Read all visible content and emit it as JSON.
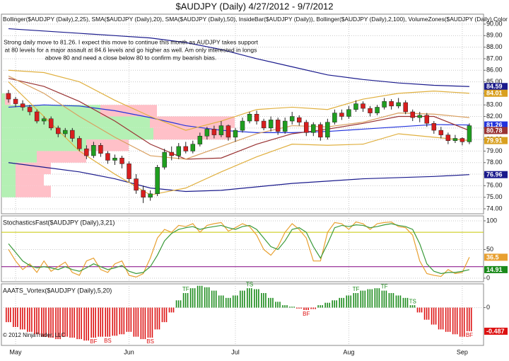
{
  "title": "$AUDJPY (Daily)  4/27/2012 - 9/7/2012",
  "copyright": "© 2012 NinjaTrader, LLC",
  "xlim": [
    -1,
    67
  ],
  "xticks": [
    {
      "value": 1,
      "label": "May"
    },
    {
      "value": 17,
      "label": "Jun"
    },
    {
      "value": 32,
      "label": "Jul"
    },
    {
      "value": 48,
      "label": "Aug"
    },
    {
      "value": 64,
      "label": "Sep"
    }
  ],
  "chart_data": [
    {
      "type": "candlestick",
      "indicators": "Bollinger($AUDJPY (Daily),2,25), SMA($AUDJPY (Daily),20), SMA($AUDJPY (Daily),50), InsideBar($AUDJPY (Daily)), Bollinger($AUDJPY (Daily),2,100), VolumeZones($AUDJPY (Daily),Color [Red],Co",
      "annotation": [
        "Strong daily move to 81.26. I expect this move to continue this month as AUDJPY takes support",
        "at 80 levels for a major assault at 84.6 levels and go higher as well. Am only interested in longs",
        "above 80 and need a close below 80 to confirm my bearish bias."
      ],
      "ylim": [
        73.57,
        90.86
      ],
      "yticks": [
        {
          "value": 74,
          "label": "74.00"
        },
        {
          "value": 75,
          "label": "75.00"
        },
        {
          "value": 76,
          "label": "76.00"
        },
        {
          "value": 77,
          "label": "77.00"
        },
        {
          "value": 78,
          "label": "78.00"
        },
        {
          "value": 79,
          "label": "79.00"
        },
        {
          "value": 80,
          "label": "80.00"
        },
        {
          "value": 81,
          "label": "81.00"
        },
        {
          "value": 82,
          "label": "82.00"
        },
        {
          "value": 83,
          "label": "83.00"
        },
        {
          "value": 84,
          "label": "84.00"
        },
        {
          "value": 85,
          "label": "85.00"
        },
        {
          "value": 86,
          "label": "86.00"
        },
        {
          "value": 87,
          "label": "87.00"
        },
        {
          "value": 88,
          "label": "88.00"
        },
        {
          "value": 89,
          "label": "89.00"
        },
        {
          "value": 90,
          "label": "90.00"
        }
      ],
      "grid": true,
      "up_color": "#1f9e1f",
      "down_color": "#d81e1e",
      "open": [
        84.0,
        83.5,
        83.1,
        82.8,
        82.4,
        81.6,
        81.8,
        81.0,
        80.5,
        80.8,
        80.1,
        79.2,
        78.6,
        79.5,
        78.8,
        78.2,
        78.4,
        77.9,
        76.6,
        75.6,
        75.0,
        75.3,
        77.6,
        78.9,
        78.6,
        79.4,
        79.0,
        79.6,
        80.3,
        80.9,
        80.4,
        81.2,
        80.2,
        80.8,
        81.6,
        82.2,
        81.6,
        81.0,
        81.7,
        80.7,
        81.6,
        81.9,
        81.5,
        80.6,
        81.3,
        80.2,
        81.5,
        82.3,
        82.0,
        82.6,
        83.1,
        82.7,
        82.3,
        82.8,
        83.3,
        82.9,
        83.2,
        82.4,
        81.9,
        82.1,
        81.4,
        80.8,
        80.4,
        79.9,
        80.1,
        79.8
      ],
      "high": [
        84.3,
        83.7,
        83.4,
        83.0,
        82.6,
        82.0,
        82.0,
        81.2,
        81.0,
        81.0,
        80.3,
        79.5,
        79.8,
        79.7,
        79.0,
        78.7,
        78.6,
        78.1,
        77.0,
        76.0,
        75.6,
        77.8,
        79.2,
        79.4,
        79.7,
        79.8,
        79.9,
        80.6,
        81.1,
        81.2,
        81.6,
        81.3,
        81.0,
        81.9,
        82.4,
        82.5,
        81.8,
        82.0,
        81.9,
        81.9,
        82.4,
        82.1,
        81.7,
        81.5,
        81.5,
        81.8,
        82.6,
        82.6,
        82.9,
        83.4,
        83.3,
        82.9,
        83.0,
        83.6,
        83.5,
        83.6,
        83.4,
        82.6,
        82.4,
        82.3,
        81.6,
        81.1,
        80.6,
        80.4,
        80.2,
        81.4
      ],
      "low": [
        83.2,
        82.8,
        82.5,
        82.1,
        81.4,
        81.3,
        80.8,
        80.2,
        80.2,
        79.8,
        79.0,
        78.3,
        78.4,
        78.5,
        77.9,
        77.8,
        77.5,
        76.3,
        75.3,
        74.5,
        74.7,
        75.1,
        77.4,
        78.2,
        78.3,
        78.8,
        78.8,
        79.4,
        80.0,
        80.1,
        80.2,
        79.9,
        79.8,
        80.6,
        81.4,
        81.3,
        80.8,
        80.7,
        80.4,
        80.5,
        81.3,
        81.2,
        80.3,
        80.3,
        79.9,
        80.0,
        81.3,
        81.7,
        81.8,
        82.4,
        82.4,
        82.0,
        82.1,
        82.6,
        82.6,
        82.7,
        82.2,
        81.6,
        81.5,
        81.1,
        80.5,
        80.1,
        79.6,
        79.7,
        79.5,
        79.6
      ],
      "close": [
        83.5,
        83.1,
        82.8,
        82.4,
        81.6,
        81.8,
        81.0,
        80.5,
        80.8,
        80.1,
        79.2,
        78.6,
        79.5,
        78.8,
        78.2,
        78.4,
        77.9,
        76.6,
        75.6,
        75.0,
        75.3,
        77.6,
        78.9,
        78.6,
        79.4,
        79.0,
        79.6,
        80.3,
        80.9,
        80.4,
        81.2,
        80.2,
        80.8,
        81.6,
        82.2,
        81.6,
        81.0,
        81.7,
        80.7,
        81.6,
        82.0,
        81.5,
        80.6,
        81.3,
        80.2,
        81.5,
        82.3,
        82.0,
        82.6,
        83.1,
        82.7,
        82.3,
        82.8,
        83.3,
        82.9,
        83.2,
        82.4,
        81.9,
        82.1,
        81.4,
        80.8,
        80.4,
        79.9,
        80.1,
        79.8,
        81.2
      ],
      "volume_zones": {
        "buy_color": "#b4f0b4",
        "sell_color": "#ffc0c8",
        "zones": [
          {
            "low": 83,
            "high": 84,
            "buy": 5,
            "sell": 8
          },
          {
            "low": 82,
            "high": 83,
            "buy": 140,
            "sell": 80
          },
          {
            "low": 81,
            "high": 82,
            "buy": 210,
            "sell": 120
          },
          {
            "low": 80,
            "high": 81,
            "buy": 215,
            "sell": 110
          },
          {
            "low": 79,
            "high": 80,
            "buy": 120,
            "sell": 60
          },
          {
            "low": 78,
            "high": 79,
            "buy": 50,
            "sell": 70
          },
          {
            "low": 77,
            "high": 78,
            "buy": 20,
            "sell": 50
          },
          {
            "low": 76,
            "high": 77,
            "buy": 20,
            "sell": 40
          },
          {
            "low": 75,
            "high": 76,
            "buy": 20,
            "sell": 50
          }
        ]
      },
      "line_x": [
        0,
        5,
        10,
        15,
        20,
        25,
        30,
        35,
        40,
        45,
        50,
        55,
        60,
        65
      ],
      "lines": [
        {
          "color": "#1a1a8c",
          "values": [
            89.6,
            89.4,
            89.2,
            89.0,
            88.8,
            88.4,
            87.8,
            87.0,
            86.3,
            85.6,
            85.2,
            84.9,
            84.7,
            84.59
          ]
        },
        {
          "color": "#1a1a8c",
          "values": [
            78.0,
            77.6,
            77.2,
            76.6,
            75.8,
            75.5,
            75.6,
            75.9,
            76.2,
            76.4,
            76.6,
            76.7,
            76.8,
            76.96
          ]
        },
        {
          "color": "#2233dd",
          "values": [
            82.8,
            83.0,
            82.9,
            82.5,
            81.9,
            81.2,
            80.8,
            80.6,
            80.6,
            80.7,
            80.9,
            81.1,
            81.3,
            81.26
          ]
        },
        {
          "color": "#993333",
          "values": [
            85.3,
            84.6,
            83.3,
            81.6,
            79.6,
            78.3,
            78.4,
            79.6,
            80.5,
            80.9,
            81.4,
            82.0,
            82.0,
            80.78
          ]
        },
        {
          "color": "#e0b040",
          "values": [
            86.0,
            85.8,
            85.0,
            83.4,
            82.0,
            80.8,
            81.6,
            82.6,
            82.8,
            82.6,
            83.5,
            84.0,
            84.2,
            84.01
          ]
        },
        {
          "color": "#e0b040",
          "values": [
            85.0,
            82.0,
            79.0,
            77.0,
            75.2,
            75.8,
            77.2,
            78.5,
            79.6,
            79.5,
            79.6,
            80.5,
            80.2,
            79.91
          ]
        },
        {
          "color": "#d9a060",
          "values": [
            85.5,
            84.0,
            82.0,
            80.2,
            78.6,
            78.3,
            79.4,
            80.5,
            81.2,
            81.1,
            81.5,
            82.3,
            82.2,
            81.9
          ]
        }
      ],
      "price_labels": [
        {
          "value": 84.59,
          "color": "#1a1a8c"
        },
        {
          "value": 84.01,
          "color": "#d9a020"
        },
        {
          "value": 81.26,
          "color": "#2233dd"
        },
        {
          "value": 80.78,
          "color": "#993333"
        },
        {
          "value": 79.91,
          "color": "#d9a020"
        },
        {
          "value": 76.96,
          "color": "#1a1a8c"
        }
      ]
    },
    {
      "type": "line",
      "label": "StochasticsFast($AUDJPY (Daily),3,21)",
      "ylim": [
        -6.2,
        108.6
      ],
      "yticks": [
        0,
        50,
        100
      ],
      "levels": [
        {
          "value": 80,
          "color": "#c8c800"
        },
        {
          "value": 20,
          "color": "#800080"
        }
      ],
      "series": [
        {
          "color": "#e8a030",
          "values": [
            50,
            30,
            15,
            25,
            10,
            30,
            12,
            20,
            28,
            10,
            5,
            30,
            35,
            15,
            10,
            25,
            30,
            5,
            2,
            8,
            35,
            70,
            85,
            80,
            92,
            90,
            95,
            80,
            92,
            95,
            97,
            82,
            88,
            95,
            90,
            75,
            50,
            40,
            55,
            80,
            95,
            85,
            70,
            30,
            30,
            80,
            97,
            95,
            85,
            98,
            95,
            85,
            95,
            97,
            98,
            90,
            88,
            75,
            30,
            8,
            5,
            3,
            15,
            8,
            10,
            36.5
          ]
        },
        {
          "color": "#3a9a3a",
          "values": [
            60,
            45,
            30,
            22,
            18,
            20,
            18,
            15,
            20,
            15,
            12,
            18,
            25,
            20,
            15,
            18,
            22,
            12,
            8,
            10,
            20,
            40,
            65,
            78,
            85,
            88,
            90,
            85,
            88,
            90,
            92,
            88,
            85,
            90,
            92,
            85,
            70,
            55,
            50,
            65,
            85,
            88,
            80,
            55,
            35,
            60,
            88,
            92,
            90,
            93,
            92,
            88,
            90,
            93,
            95,
            92,
            90,
            85,
            60,
            25,
            12,
            8,
            10,
            10,
            12,
            14.91
          ]
        }
      ],
      "last_labels": [
        {
          "value": 36.5,
          "color": "#e8a030"
        },
        {
          "value": 14.91,
          "color": "#1a8a1a"
        }
      ]
    },
    {
      "type": "bar",
      "label": "AAATS_Vortex($AUDJPY (Daily),5,20)",
      "ylim": [
        -0.78,
        0.49
      ],
      "yticks": [
        0
      ],
      "pos_color": "#1a8a1a",
      "neg_color": "#dd1111",
      "values": [
        -0.3,
        -0.4,
        -0.45,
        -0.5,
        -0.55,
        -0.6,
        -0.62,
        -0.65,
        -0.6,
        -0.62,
        -0.65,
        -0.68,
        -0.62,
        -0.6,
        -0.6,
        -0.58,
        -0.55,
        -0.5,
        -0.6,
        -0.65,
        -0.62,
        -0.45,
        -0.3,
        -0.1,
        0.15,
        0.3,
        0.4,
        0.45,
        0.42,
        0.35,
        0.25,
        0.2,
        0.25,
        0.35,
        0.4,
        0.38,
        0.3,
        0.2,
        0.12,
        0.05,
        0.02,
        -0.02,
        -0.05,
        -0.03,
        0.05,
        0.1,
        0.15,
        0.2,
        0.25,
        0.3,
        0.35,
        0.38,
        0.4,
        0.35,
        0.3,
        0.25,
        0.2,
        0.05,
        -0.1,
        -0.25,
        -0.35,
        -0.45,
        -0.5,
        -0.55,
        -0.6,
        -0.487
      ],
      "signals": [
        {
          "x": 12,
          "label": "BF"
        },
        {
          "x": 14,
          "label": "BS"
        },
        {
          "x": 20,
          "label": "BS"
        },
        {
          "x": 25,
          "label": "TF"
        },
        {
          "x": 34,
          "label": "TS"
        },
        {
          "x": 42,
          "label": "BF"
        },
        {
          "x": 49,
          "label": "TF"
        },
        {
          "x": 53,
          "label": "TF"
        },
        {
          "x": 57,
          "label": "TS"
        },
        {
          "x": 65,
          "label": "BF"
        }
      ],
      "last_labels": [
        {
          "value": -0.487,
          "color": "#dd1111"
        }
      ]
    }
  ]
}
